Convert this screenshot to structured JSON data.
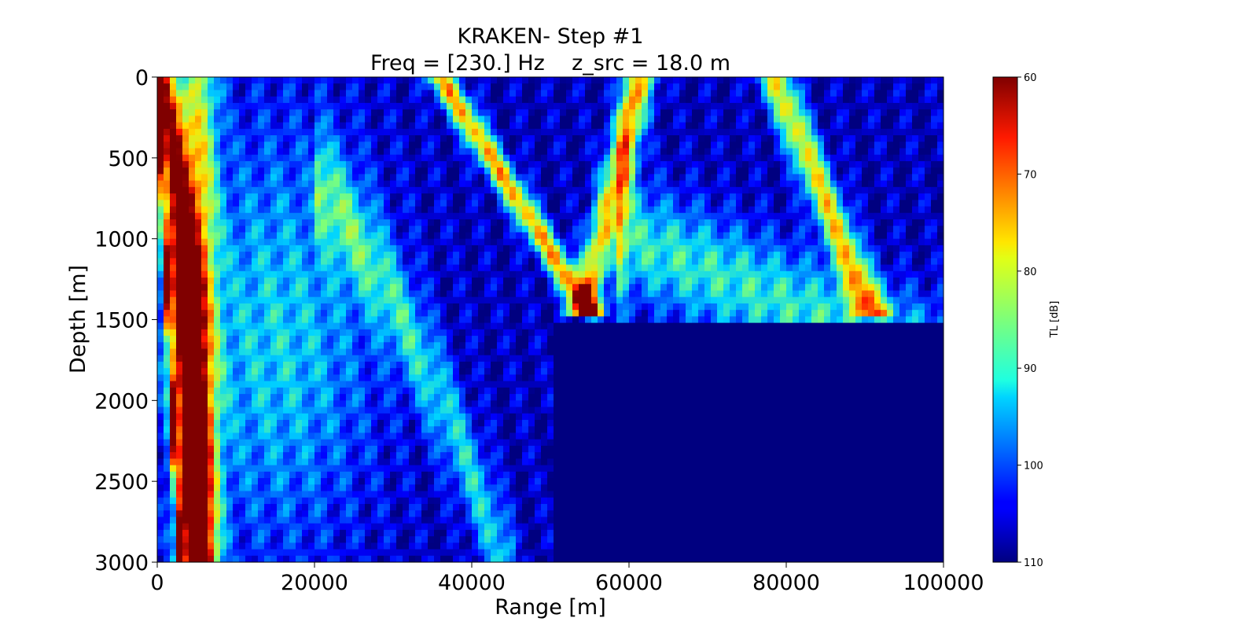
{
  "chart_data": {
    "type": "heatmap",
    "title": "KRAKEN- Step #1",
    "subtitle": "Freq = [230.] Hz    z_src = 18.0 m",
    "xlabel": "Range [m]",
    "ylabel": "Depth [m]",
    "xlim": [
      0,
      100000
    ],
    "ylim": [
      3000,
      0
    ],
    "x_ticks": [
      0,
      20000,
      40000,
      60000,
      80000,
      100000
    ],
    "y_ticks": [
      0,
      500,
      1000,
      1500,
      2000,
      2500,
      3000
    ],
    "colorbar": {
      "label": "TL [dB]",
      "range": [
        60,
        110
      ],
      "ticks": [
        60,
        70,
        80,
        90,
        100,
        110
      ],
      "colormap": "jet",
      "reversed": true
    },
    "bathymetry": [
      {
        "range": 0,
        "depth": 3000
      },
      {
        "range": 50500,
        "depth": 3000
      },
      {
        "range": 50500,
        "depth": 1500
      },
      {
        "range": 100000,
        "depth": 1500
      }
    ],
    "source_depth": 18.0,
    "frequency_hz": 230
  }
}
